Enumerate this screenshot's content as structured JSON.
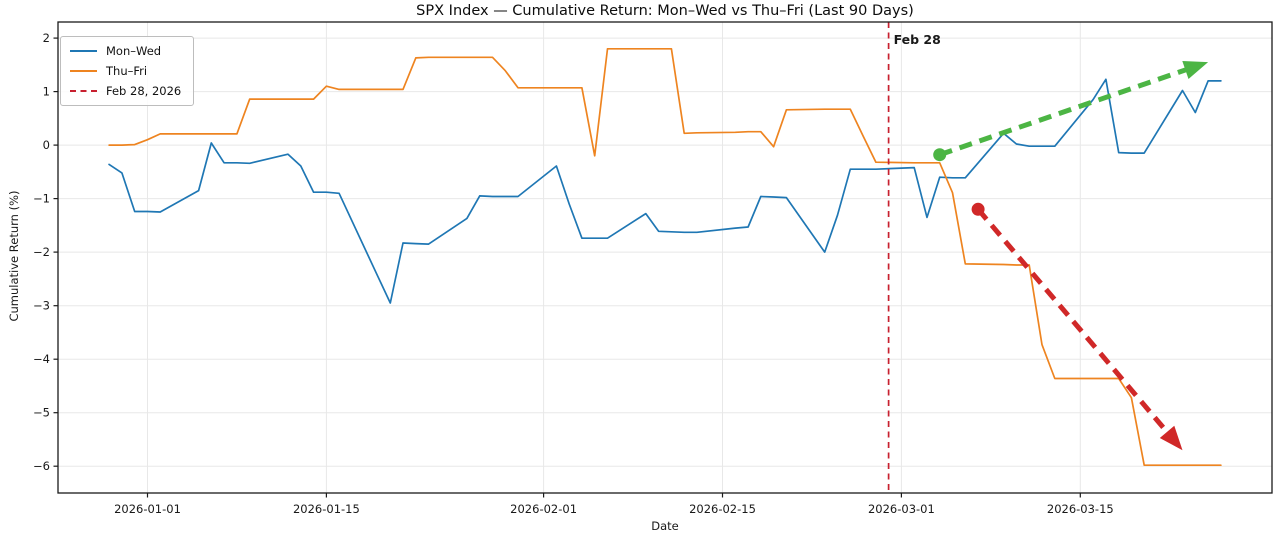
{
  "chart_data": {
    "type": "line",
    "title": "SPX Index — Cumulative Return: Mon–Wed vs Thu–Fri (Last 90 Days)",
    "xlabel": "Date",
    "ylabel": "Cumulative Return (%)",
    "x_domain": [
      "2025-12-25",
      "2026-03-30"
    ],
    "ylim": [
      -6.5,
      2.3
    ],
    "grid": true,
    "legend_position": "upper-left",
    "xticks": [
      "2026-01-01",
      "2026-01-15",
      "2026-02-01",
      "2026-02-15",
      "2026-03-01",
      "2026-03-15"
    ],
    "yticks": [
      2,
      1,
      0,
      -1,
      -2,
      -3,
      -4,
      -5,
      -6
    ],
    "series": [
      {
        "name": "Mon–Wed",
        "color": "#1f77b4",
        "style": "solid",
        "points": [
          [
            "2025-12-29",
            -0.36
          ],
          [
            "2025-12-30",
            -0.52
          ],
          [
            "2025-12-31",
            -1.24
          ],
          [
            "2026-01-01",
            -1.24
          ],
          [
            "2026-01-02",
            -1.25
          ],
          [
            "2026-01-05",
            -0.85
          ],
          [
            "2026-01-06",
            0.04
          ],
          [
            "2026-01-07",
            -0.33
          ],
          [
            "2026-01-08",
            -0.33
          ],
          [
            "2026-01-09",
            -0.34
          ],
          [
            "2026-01-12",
            -0.17
          ],
          [
            "2026-01-13",
            -0.39
          ],
          [
            "2026-01-14",
            -0.88
          ],
          [
            "2026-01-15",
            -0.88
          ],
          [
            "2026-01-16",
            -0.9
          ],
          [
            "2026-01-19",
            -2.44
          ],
          [
            "2026-01-20",
            -2.95
          ],
          [
            "2026-01-21",
            -1.83
          ],
          [
            "2026-01-22",
            -1.84
          ],
          [
            "2026-01-23",
            -1.85
          ],
          [
            "2026-01-26",
            -1.37
          ],
          [
            "2026-01-27",
            -0.95
          ],
          [
            "2026-01-28",
            -0.96
          ],
          [
            "2026-01-29",
            -0.96
          ],
          [
            "2026-01-30",
            -0.96
          ],
          [
            "2026-02-02",
            -0.39
          ],
          [
            "2026-02-03",
            -1.1
          ],
          [
            "2026-02-04",
            -1.74
          ],
          [
            "2026-02-05",
            -1.74
          ],
          [
            "2026-02-06",
            -1.74
          ],
          [
            "2026-02-09",
            -1.28
          ],
          [
            "2026-02-10",
            -1.61
          ],
          [
            "2026-02-11",
            -1.62
          ],
          [
            "2026-02-12",
            -1.63
          ],
          [
            "2026-02-13",
            -1.63
          ],
          [
            "2026-02-16",
            -1.55
          ],
          [
            "2026-02-17",
            -1.53
          ],
          [
            "2026-02-18",
            -0.96
          ],
          [
            "2026-02-19",
            -0.97
          ],
          [
            "2026-02-20",
            -0.98
          ],
          [
            "2026-02-23",
            -2.0
          ],
          [
            "2026-02-24",
            -1.31
          ],
          [
            "2026-02-25",
            -0.45
          ],
          [
            "2026-02-26",
            -0.45
          ],
          [
            "2026-02-27",
            -0.45
          ],
          [
            "2026-03-02",
            -0.42
          ],
          [
            "2026-03-03",
            -1.35
          ],
          [
            "2026-03-04",
            -0.6
          ],
          [
            "2026-03-05",
            -0.61
          ],
          [
            "2026-03-06",
            -0.61
          ],
          [
            "2026-03-09",
            0.22
          ],
          [
            "2026-03-10",
            0.02
          ],
          [
            "2026-03-11",
            -0.02
          ],
          [
            "2026-03-12",
            -0.02
          ],
          [
            "2026-03-13",
            -0.02
          ],
          [
            "2026-03-16",
            0.85
          ],
          [
            "2026-03-17",
            1.23
          ],
          [
            "2026-03-18",
            -0.14
          ],
          [
            "2026-03-19",
            -0.15
          ],
          [
            "2026-03-20",
            -0.15
          ],
          [
            "2026-03-23",
            1.02
          ],
          [
            "2026-03-24",
            0.61
          ],
          [
            "2026-03-25",
            1.2
          ],
          [
            "2026-03-26",
            1.2
          ]
        ]
      },
      {
        "name": "Thu–Fri",
        "color": "#ee8420",
        "style": "solid",
        "points": [
          [
            "2025-12-29",
            0.0
          ],
          [
            "2025-12-30",
            0.0
          ],
          [
            "2025-12-31",
            0.01
          ],
          [
            "2026-01-01",
            0.1
          ],
          [
            "2026-01-02",
            0.21
          ],
          [
            "2026-01-05",
            0.21
          ],
          [
            "2026-01-06",
            0.21
          ],
          [
            "2026-01-07",
            0.21
          ],
          [
            "2026-01-08",
            0.21
          ],
          [
            "2026-01-09",
            0.86
          ],
          [
            "2026-01-12",
            0.86
          ],
          [
            "2026-01-13",
            0.86
          ],
          [
            "2026-01-14",
            0.86
          ],
          [
            "2026-01-15",
            1.1
          ],
          [
            "2026-01-16",
            1.04
          ],
          [
            "2026-01-19",
            1.04
          ],
          [
            "2026-01-20",
            1.04
          ],
          [
            "2026-01-21",
            1.04
          ],
          [
            "2026-01-22",
            1.63
          ],
          [
            "2026-01-23",
            1.64
          ],
          [
            "2026-01-26",
            1.64
          ],
          [
            "2026-01-27",
            1.64
          ],
          [
            "2026-01-28",
            1.64
          ],
          [
            "2026-01-29",
            1.39
          ],
          [
            "2026-01-30",
            1.07
          ],
          [
            "2026-02-02",
            1.07
          ],
          [
            "2026-02-03",
            1.07
          ],
          [
            "2026-02-04",
            1.07
          ],
          [
            "2026-02-05",
            -0.2
          ],
          [
            "2026-02-06",
            1.8
          ],
          [
            "2026-02-09",
            1.8
          ],
          [
            "2026-02-10",
            1.8
          ],
          [
            "2026-02-11",
            1.8
          ],
          [
            "2026-02-12",
            0.22
          ],
          [
            "2026-02-13",
            0.23
          ],
          [
            "2026-02-16",
            0.24
          ],
          [
            "2026-02-17",
            0.25
          ],
          [
            "2026-02-18",
            0.25
          ],
          [
            "2026-02-19",
            -0.03
          ],
          [
            "2026-02-20",
            0.66
          ],
          [
            "2026-02-23",
            0.67
          ],
          [
            "2026-02-24",
            0.67
          ],
          [
            "2026-02-25",
            0.67
          ],
          [
            "2026-02-26",
            0.17
          ],
          [
            "2026-02-27",
            -0.32
          ],
          [
            "2026-03-02",
            -0.33
          ],
          [
            "2026-03-03",
            -0.33
          ],
          [
            "2026-03-04",
            -0.33
          ],
          [
            "2026-03-05",
            -0.89
          ],
          [
            "2026-03-06",
            -2.22
          ],
          [
            "2026-03-09",
            -2.23
          ],
          [
            "2026-03-10",
            -2.24
          ],
          [
            "2026-03-11",
            -2.24
          ],
          [
            "2026-03-12",
            -3.73
          ],
          [
            "2026-03-13",
            -4.36
          ],
          [
            "2026-03-16",
            -4.36
          ],
          [
            "2026-03-17",
            -4.36
          ],
          [
            "2026-03-18",
            -4.36
          ],
          [
            "2026-03-19",
            -4.72
          ],
          [
            "2026-03-20",
            -5.98
          ],
          [
            "2026-03-23",
            -5.98
          ],
          [
            "2026-03-24",
            -5.98
          ],
          [
            "2026-03-25",
            -5.98
          ],
          [
            "2026-03-26",
            -5.98
          ]
        ]
      }
    ],
    "vline": {
      "date": "2026-02-28",
      "label": "Feb 28",
      "legend_label": "Feb 28, 2026",
      "color": "#c8202f",
      "style": "dashed"
    },
    "arrows": [
      {
        "name": "uptrend-arrow",
        "color": "#4cb544",
        "from": [
          "2026-03-04",
          -0.18
        ],
        "to": [
          "2026-03-25",
          1.55
        ]
      },
      {
        "name": "downtrend-arrow",
        "color": "#d02828",
        "from": [
          "2026-03-07",
          -1.2
        ],
        "to": [
          "2026-03-23",
          -5.7
        ]
      }
    ],
    "legend": [
      "Mon–Wed",
      "Thu–Fri",
      "Feb 28, 2026"
    ]
  }
}
